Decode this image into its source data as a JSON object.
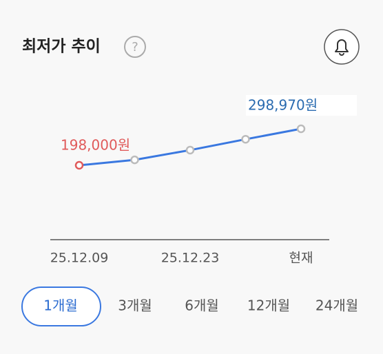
{
  "header": {
    "title": "최저가 추이",
    "help_icon": "?"
  },
  "chart_data": {
    "type": "line",
    "categories": [
      "25.12.09",
      null,
      "25.12.23",
      null,
      "현재"
    ],
    "values": [
      198000,
      213000,
      240000,
      270000,
      298970
    ],
    "value_labels": [
      "198,000원",
      null,
      null,
      null,
      "298,970원"
    ],
    "color": "#3a78e0",
    "min_label_color": "#e05a5a",
    "max_label_color": "#2a6bb0"
  },
  "tabs": {
    "items": [
      "1개월",
      "3개월",
      "6개월",
      "12개월",
      "24개월"
    ],
    "selected": 0
  }
}
